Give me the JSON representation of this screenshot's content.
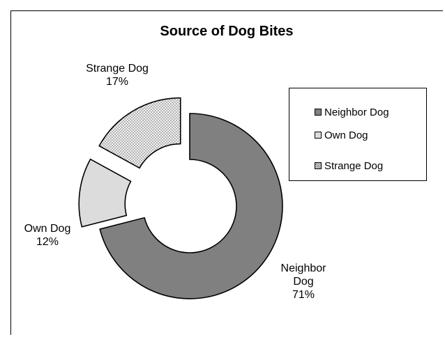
{
  "chart_data": {
    "type": "pie",
    "style": "exploded-doughnut",
    "title": "Source of Dog Bites",
    "categories": [
      "Neighbor Dog",
      "Own Dog",
      "Strange Dog"
    ],
    "values": [
      71,
      12,
      17
    ],
    "unit": "%",
    "slice_labels": [
      {
        "lines": [
          "Neighbor",
          "Dog",
          "71%"
        ]
      },
      {
        "lines": [
          "Own Dog",
          "12%"
        ]
      },
      {
        "lines": [
          "Strange Dog",
          "17%"
        ]
      }
    ],
    "colors": [
      "#808080",
      "#dcdcdc",
      "#eeeeee"
    ],
    "fills": [
      "solid",
      "solid",
      "dotted"
    ],
    "legend": {
      "placement": "right",
      "entries": [
        "Neighbor Dog",
        "Own Dog",
        "Strange Dog"
      ]
    },
    "grid": false
  }
}
